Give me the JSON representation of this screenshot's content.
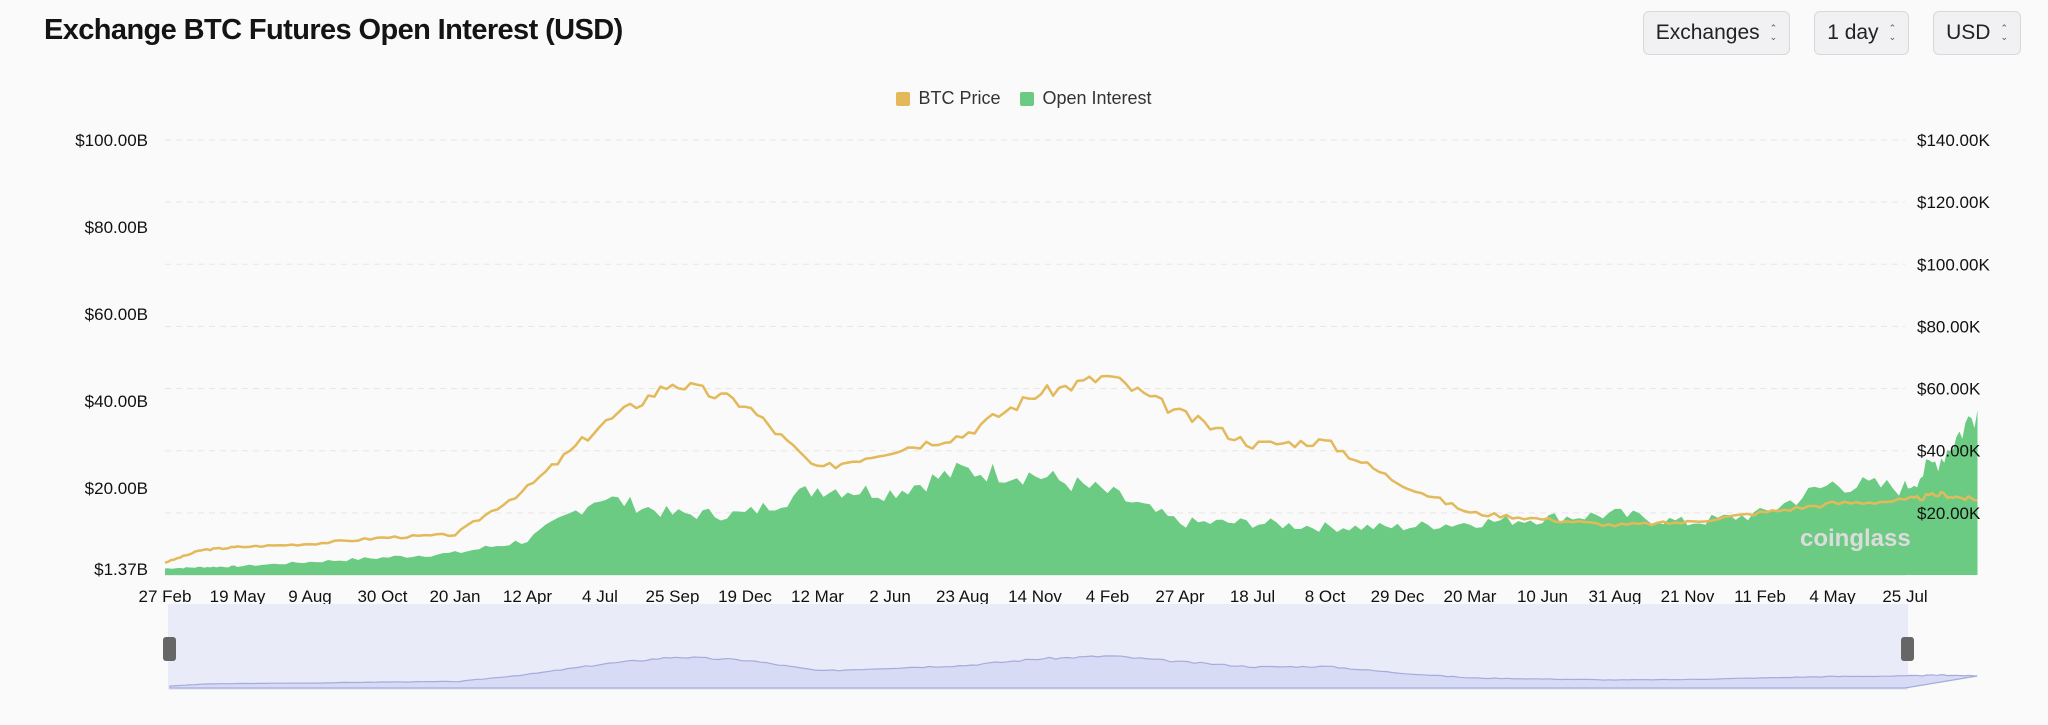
{
  "header": {
    "title": "Exchange BTC Futures Open Interest (USD)"
  },
  "controls": {
    "exchange": "Exchanges",
    "interval": "1 day",
    "currency": "USD"
  },
  "legend": [
    {
      "label": "BTC Price",
      "color": "#e3b95a"
    },
    {
      "label": "Open Interest",
      "color": "#6ccb82"
    }
  ],
  "watermark": "coinglass",
  "chart_data": {
    "type": "area",
    "x_tick_labels": [
      "27 Feb",
      "19 May",
      "9 Aug",
      "30 Oct",
      "20 Jan",
      "12 Apr",
      "4 Jul",
      "25 Sep",
      "19 Dec",
      "12 Mar",
      "2 Jun",
      "23 Aug",
      "14 Nov",
      "4 Feb",
      "27 Apr",
      "18 Jul",
      "8 Oct",
      "29 Dec",
      "20 Mar",
      "10 Jun",
      "31 Aug",
      "21 Nov",
      "11 Feb",
      "4 May",
      "25 Jul"
    ],
    "y_left": {
      "min": 0,
      "max": 100,
      "ticks": [
        {
          "v": 100,
          "label": "$100.00B"
        },
        {
          "v": 80,
          "label": "$80.00B"
        },
        {
          "v": 60,
          "label": "$60.00B"
        },
        {
          "v": 40,
          "label": "$40.00B"
        },
        {
          "v": 20,
          "label": "$20.00B"
        },
        {
          "v": 1.37,
          "label": "$1.37B"
        }
      ]
    },
    "y_right": {
      "min": 0,
      "max": 140,
      "ticks": [
        {
          "v": 140,
          "label": "$140.00K"
        },
        {
          "v": 120,
          "label": "$120.00K"
        },
        {
          "v": 100,
          "label": "$100.00K"
        },
        {
          "v": 80,
          "label": "$80.00K"
        },
        {
          "v": 60,
          "label": "$60.00K"
        },
        {
          "v": 40,
          "label": "$40.00K"
        },
        {
          "v": 20,
          "label": "$20.00K"
        }
      ]
    },
    "grid": true,
    "legend_position": "top-center",
    "series": [
      {
        "name": "BTC Price",
        "axis": "right",
        "type": "line",
        "color": "#e3b95a",
        "x": [
          0,
          0.5,
          1,
          2,
          3,
          4,
          5,
          6,
          7,
          8,
          9,
          10,
          11,
          12,
          13,
          14,
          15,
          16,
          17,
          18,
          19,
          20,
          21,
          22,
          23,
          24,
          24.5,
          25
        ],
        "values": [
          4,
          8,
          9,
          10,
          12,
          13,
          28,
          48,
          62,
          55,
          34,
          40,
          45,
          58,
          64,
          52,
          42,
          43,
          30,
          20,
          18,
          16,
          17,
          20,
          23,
          24,
          26,
          24
        ]
      },
      {
        "name": "Open Interest",
        "axis": "left",
        "type": "area",
        "color": "#6ccb82",
        "x": [
          0,
          0.5,
          1,
          2,
          3,
          4,
          5,
          6,
          7,
          8,
          9,
          10,
          11,
          12,
          13,
          14,
          15,
          16,
          17,
          18,
          19,
          20,
          21,
          22,
          23,
          24,
          24.5,
          25
        ],
        "values": [
          1.5,
          1.8,
          2,
          3,
          4,
          5,
          8,
          18,
          14,
          14,
          20,
          19,
          24,
          23,
          19,
          12,
          12,
          11,
          11,
          12,
          13,
          14,
          12,
          14,
          21,
          20,
          27,
          38
        ]
      }
    ]
  }
}
